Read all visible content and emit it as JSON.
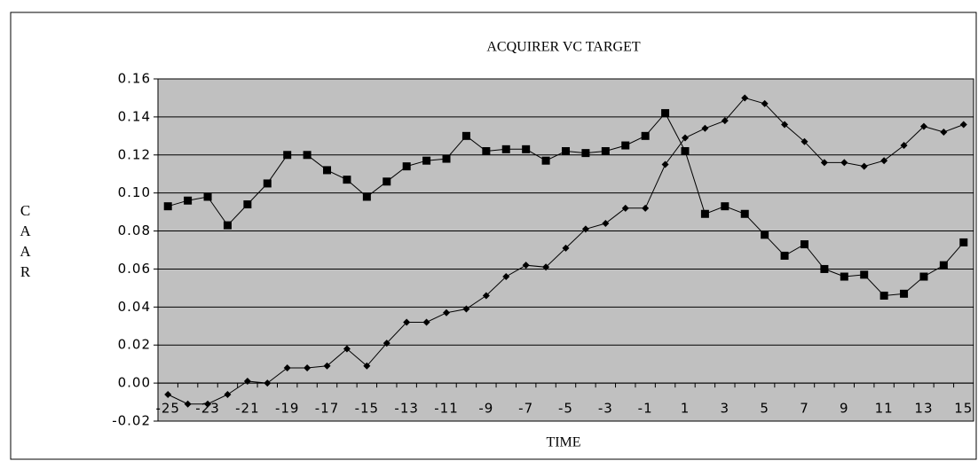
{
  "chart_data": {
    "type": "line",
    "title": "ACQUIRER VC TARGET",
    "x_label": "TIME",
    "y_label": "CAAR",
    "categories": [
      "-25",
      null,
      "-23",
      null,
      "-21",
      null,
      "-19",
      null,
      "-17",
      null,
      "-15",
      null,
      "-13",
      null,
      "-11",
      null,
      "-9",
      null,
      "-7",
      null,
      "-5",
      null,
      "-3",
      null,
      "-1",
      null,
      "1",
      null,
      "3",
      null,
      "5",
      null,
      "7",
      null,
      "9",
      null,
      "11",
      null,
      "13",
      null,
      "15"
    ],
    "series": [
      {
        "color": "#000000",
        "marker": "square",
        "values": [
          0.093,
          0.096,
          0.098,
          0.083,
          0.094,
          0.105,
          0.12,
          0.12,
          0.112,
          0.107,
          0.098,
          0.106,
          0.114,
          0.117,
          0.118,
          0.13,
          0.122,
          0.123,
          0.123,
          0.117,
          0.122,
          0.121,
          0.122,
          0.125,
          0.13,
          0.142,
          0.122,
          0.089,
          0.093,
          0.089,
          0.078,
          0.067,
          0.073,
          0.06,
          0.056,
          0.057,
          0.046,
          0.047,
          0.056,
          0.062,
          0.074
        ]
      },
      {
        "color": "#000000",
        "marker": "diamond",
        "values": [
          -0.006,
          -0.011,
          -0.011,
          -0.006,
          0.001,
          0.0,
          0.008,
          0.008,
          0.009,
          0.018,
          0.009,
          0.021,
          0.032,
          0.032,
          0.037,
          0.039,
          0.046,
          0.056,
          0.062,
          0.061,
          0.071,
          0.081,
          0.084,
          0.092,
          0.092,
          0.115,
          0.129,
          0.134,
          0.138,
          0.15,
          0.147,
          0.136,
          0.127,
          0.116,
          0.116,
          0.114,
          0.117,
          0.125,
          0.135,
          0.132,
          0.136
        ]
      }
    ],
    "ylim": [
      -0.02,
      0.16
    ],
    "yticks": [
      -0.02,
      {
        "value": 0,
        "label": "0.00"
      },
      0.02,
      0.04,
      0.06,
      0.08,
      {
        "value": 0.1,
        "label": "0.10"
      },
      0.12,
      0.14,
      0.16
    ],
    "grid": true,
    "plot_background": "#c0c0c0"
  }
}
